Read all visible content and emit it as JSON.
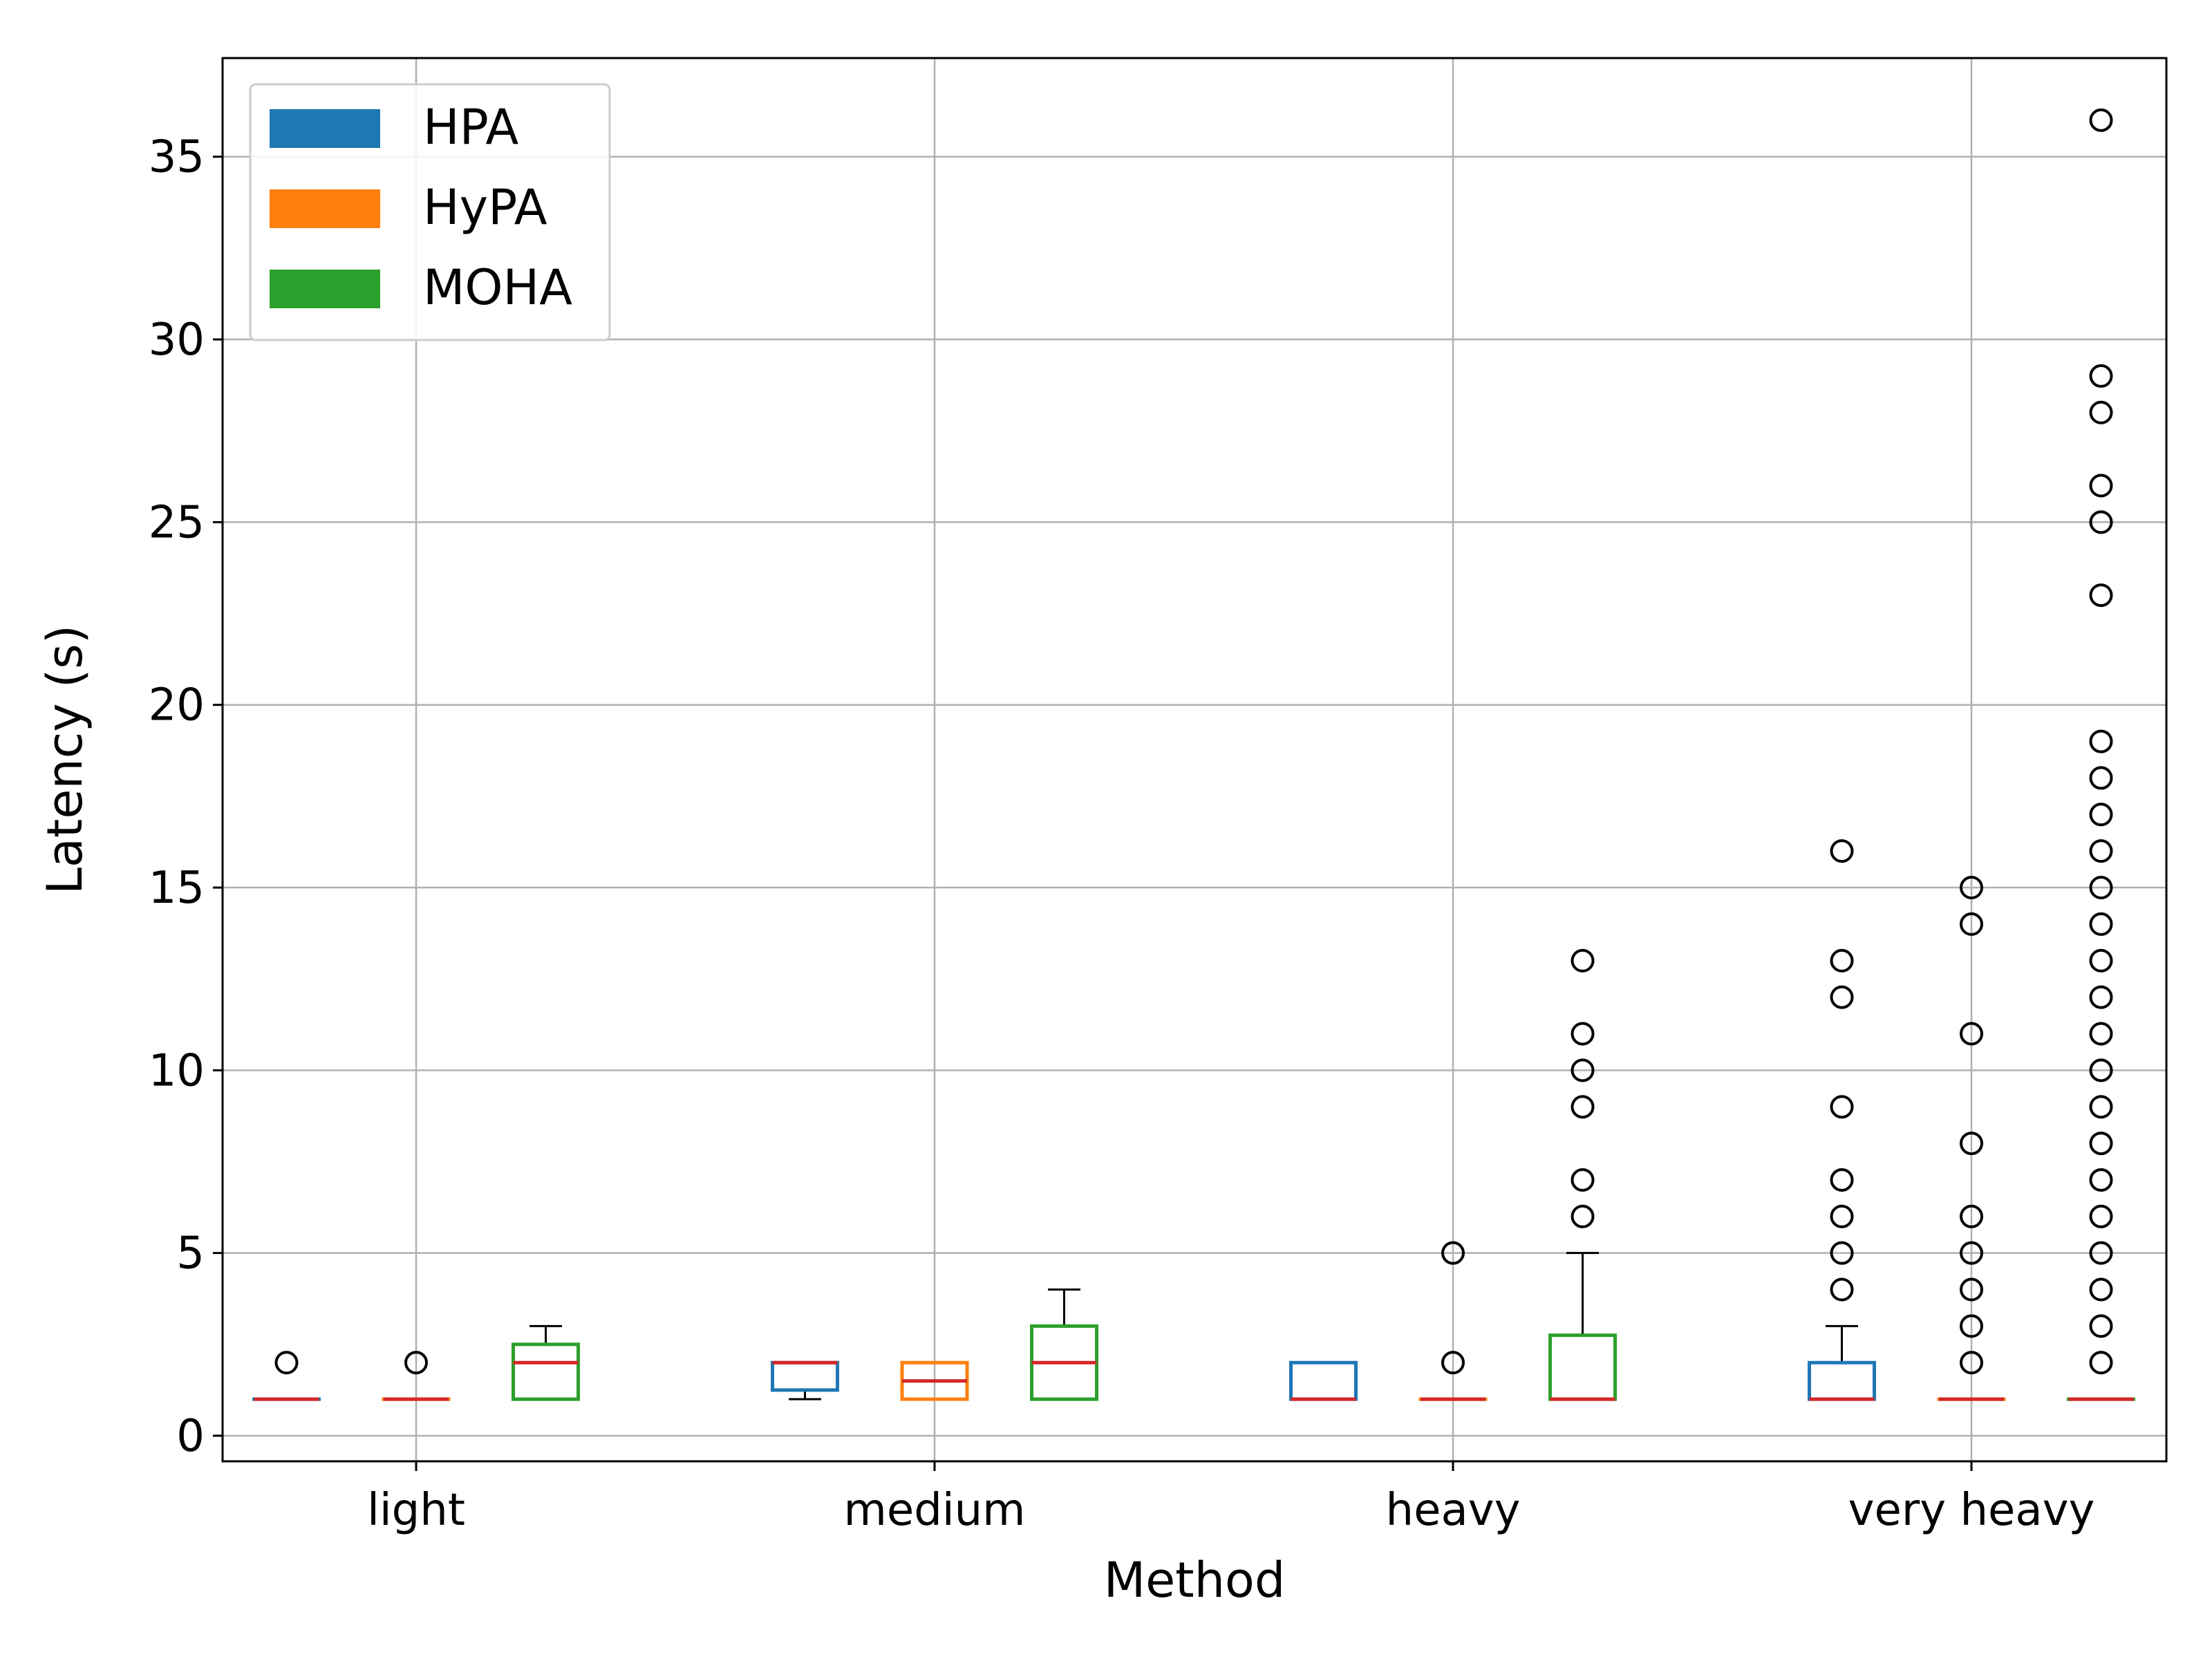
{
  "chart_data": {
    "type": "boxplot",
    "xlabel": "Method",
    "ylabel": "Latency (s)",
    "ylim": [
      -0.7,
      37.7
    ],
    "yticks": [
      0,
      5,
      10,
      15,
      20,
      25,
      30,
      35
    ],
    "grid": true,
    "legend_position": "top-left",
    "categories": [
      "light",
      "medium",
      "heavy",
      "very heavy"
    ],
    "series": [
      {
        "name": "HPA",
        "color": "#1f77b4",
        "boxes": [
          {
            "category": "light",
            "whisker_low": 1,
            "q1": 1,
            "median": 1,
            "q3": 1,
            "whisker_high": 1,
            "outliers": [
              2
            ]
          },
          {
            "category": "medium",
            "whisker_low": 1,
            "q1": 1.25,
            "median": 2,
            "q3": 2,
            "whisker_high": 2,
            "outliers": []
          },
          {
            "category": "heavy",
            "whisker_low": 1,
            "q1": 1,
            "median": 1,
            "q3": 2,
            "whisker_high": 2,
            "outliers": []
          },
          {
            "category": "very heavy",
            "whisker_low": 1,
            "q1": 1,
            "median": 1,
            "q3": 2,
            "whisker_high": 3,
            "outliers": [
              4,
              5,
              6,
              7,
              9,
              12,
              13,
              16
            ]
          }
        ]
      },
      {
        "name": "HyPA",
        "color": "#ff7f0e",
        "boxes": [
          {
            "category": "light",
            "whisker_low": 1,
            "q1": 1,
            "median": 1,
            "q3": 1,
            "whisker_high": 1,
            "outliers": [
              2
            ]
          },
          {
            "category": "medium",
            "whisker_low": 1,
            "q1": 1,
            "median": 1.5,
            "q3": 2,
            "whisker_high": 2,
            "outliers": []
          },
          {
            "category": "heavy",
            "whisker_low": 1,
            "q1": 1,
            "median": 1,
            "q3": 1,
            "whisker_high": 1,
            "outliers": [
              2,
              5
            ]
          },
          {
            "category": "very heavy",
            "whisker_low": 1,
            "q1": 1,
            "median": 1,
            "q3": 1,
            "whisker_high": 1,
            "outliers": [
              2,
              3,
              4,
              5,
              6,
              8,
              11,
              14,
              15
            ]
          }
        ]
      },
      {
        "name": "MOHA",
        "color": "#2ca02c",
        "boxes": [
          {
            "category": "light",
            "whisker_low": 1,
            "q1": 1,
            "median": 2,
            "q3": 2.5,
            "whisker_high": 3,
            "outliers": []
          },
          {
            "category": "medium",
            "whisker_low": 1,
            "q1": 1,
            "median": 2,
            "q3": 3,
            "whisker_high": 4,
            "outliers": []
          },
          {
            "category": "heavy",
            "whisker_low": 1,
            "q1": 1,
            "median": 1,
            "q3": 2.75,
            "whisker_high": 5,
            "outliers": [
              6,
              7,
              9,
              10,
              11,
              13
            ]
          },
          {
            "category": "very heavy",
            "whisker_low": 1,
            "q1": 1,
            "median": 1,
            "q3": 1,
            "whisker_high": 1,
            "outliers": [
              2,
              3,
              4,
              5,
              6,
              7,
              8,
              9,
              10,
              11,
              12,
              13,
              14,
              15,
              16,
              17,
              18,
              19,
              23,
              25,
              26,
              28,
              29,
              36
            ]
          }
        ]
      }
    ],
    "median_color": "#d62728"
  }
}
